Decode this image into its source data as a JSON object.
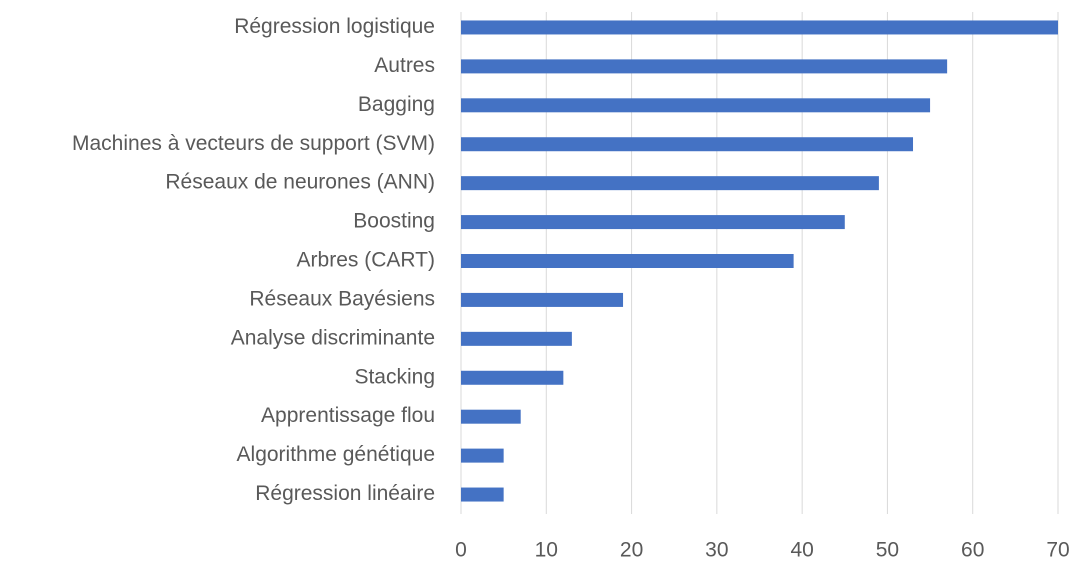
{
  "chart_data": {
    "type": "bar",
    "orientation": "horizontal",
    "categories": [
      "Régression logistique",
      "Autres",
      "Bagging",
      "Machines à vecteurs de support (SVM)",
      "Réseaux de neurones (ANN)",
      "Boosting",
      "Arbres (CART)",
      "Réseaux Bayésiens",
      "Analyse discriminante",
      "Stacking",
      "Apprentissage flou",
      "Algorithme génétique",
      "Régression linéaire"
    ],
    "values": [
      70,
      57,
      55,
      53,
      49,
      45,
      39,
      19,
      13,
      12,
      7,
      5,
      5
    ],
    "color": "#4472c4",
    "xlim": [
      0,
      70
    ],
    "xticks": [
      0,
      10,
      20,
      30,
      40,
      50,
      60,
      70
    ],
    "grid": true
  }
}
